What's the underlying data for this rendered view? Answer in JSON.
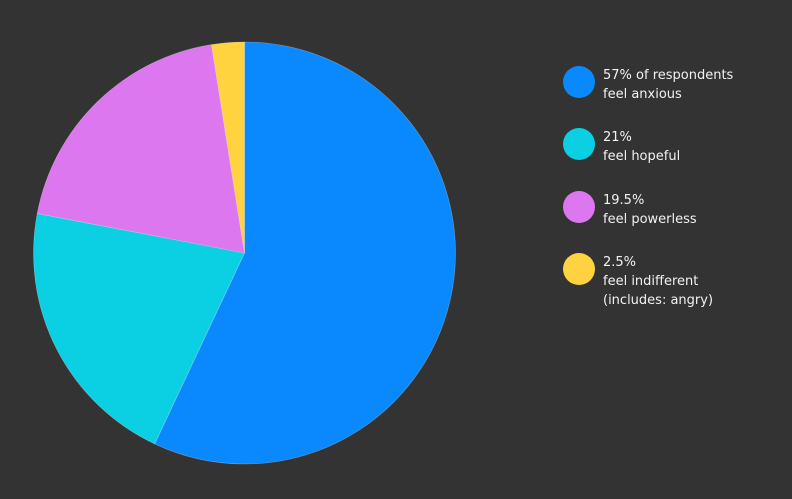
{
  "chart_data": {
    "type": "pie",
    "slices": [
      {
        "label": "57% of respondents feel anxious",
        "value": 57,
        "color": "#0a89ff"
      },
      {
        "label": "21% feel hopeful",
        "value": 21,
        "color": "#0bd0e3"
      },
      {
        "label": "19.5% feel powerless",
        "value": 19.5,
        "color": "#dd77ef"
      },
      {
        "label": "2.5% feel indifferent (includes: angry)",
        "value": 2.5,
        "color": "#ffd23f"
      }
    ]
  },
  "legend": {
    "items": [
      {
        "lines": [
          "57% of respondents",
          "feel anxious"
        ],
        "color": "#0a89ff"
      },
      {
        "lines": [
          "21%",
          "feel hopeful"
        ],
        "color": "#0bd0e3"
      },
      {
        "lines": [
          "19.5%",
          "feel powerless"
        ],
        "color": "#dd77ef"
      },
      {
        "lines": [
          "2.5%",
          "feel indifferent",
          "(includes: angry)"
        ],
        "color": "#ffd23f"
      }
    ]
  },
  "colors": {
    "background": "#333333",
    "text": "#f2f2f2"
  }
}
